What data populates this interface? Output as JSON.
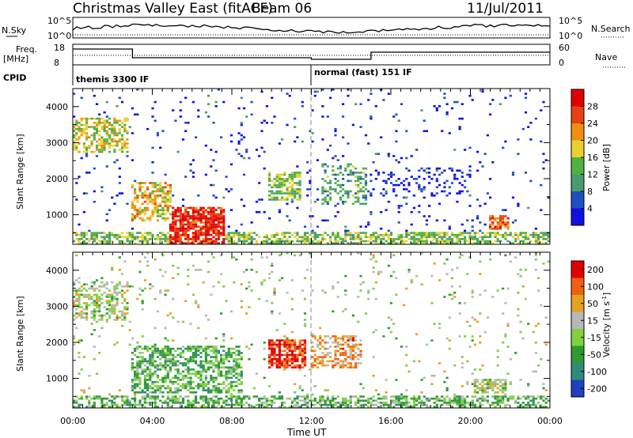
{
  "header": {
    "station": "Christmas Valley East (fitACF)",
    "beam": "Beam 06",
    "date": "11/Jul/2011"
  },
  "strip_labels": {
    "nsky": "N.Sky",
    "nsearch": "N.Search",
    "freq_line1": "Freq.",
    "freq_line2": "[MHz]",
    "nave": "Nave",
    "cpid": "CPID",
    "noise_ticks_left": [
      "10^5",
      "10^0"
    ],
    "noise_ticks_right": [
      "10^5",
      "10^0"
    ],
    "freq_ticks": [
      "18",
      "8"
    ],
    "nave_ticks": [
      "60",
      "0"
    ]
  },
  "cpid_segments": [
    {
      "label": "themis 3300 IF",
      "start_hour": 0
    },
    {
      "label": "normal (fast) 151 IF",
      "start_hour": 12
    }
  ],
  "axes": {
    "ylabel": "Slant Range [km]",
    "xlabel": "Time UT",
    "yticks": [
      "1000",
      "2000",
      "3000",
      "4000"
    ],
    "xticks": [
      "00:00",
      "04:00",
      "08:00",
      "12:00",
      "16:00",
      "20:00",
      "00:00"
    ]
  },
  "colorbars": {
    "power": {
      "label": "Power [dB]",
      "ticks": [
        "4",
        "8",
        "12",
        "16",
        "20",
        "24",
        "28"
      ],
      "colors": [
        "#1010e0",
        "#2050c0",
        "#4a9a70",
        "#50b040",
        "#e8d030",
        "#f09010",
        "#e84010",
        "#e00000"
      ]
    },
    "velocity": {
      "label": "Velocity [m s",
      "label_sup": "-1",
      "label_end": "]",
      "ticks": [
        "200",
        "100",
        "50",
        "15",
        "-15",
        "-50",
        "-100",
        "-200"
      ],
      "colors": [
        "#2040c0",
        "#2f8a7a",
        "#2f9a2f",
        "#80d040",
        "#b8b8b8",
        "#e8a020",
        "#f06010",
        "#e00000"
      ]
    }
  },
  "chart_data": {
    "type": "heatmap",
    "x_range_hours": [
      0,
      24
    ],
    "y_range_km": [
      180,
      4500
    ],
    "power_clusters": [
      {
        "t0": 0.0,
        "t1": 2.8,
        "r0": 2700,
        "r1": 3700,
        "density": 0.55,
        "level": 0.55
      },
      {
        "t0": 3.0,
        "t1": 5.0,
        "r0": 800,
        "r1": 1900,
        "density": 0.6,
        "level": 0.6
      },
      {
        "t0": 4.8,
        "t1": 7.6,
        "r0": 180,
        "r1": 1200,
        "density": 0.8,
        "level": 0.9
      },
      {
        "t0": 0.0,
        "t1": 24.0,
        "r0": 180,
        "r1": 500,
        "density": 0.6,
        "level": 0.45
      },
      {
        "t0": 9.8,
        "t1": 11.5,
        "r0": 1400,
        "r1": 2200,
        "density": 0.6,
        "level": 0.45
      },
      {
        "t0": 12.5,
        "t1": 14.8,
        "r0": 1300,
        "r1": 2400,
        "density": 0.35,
        "level": 0.35
      },
      {
        "t0": 15.0,
        "t1": 20.0,
        "r0": 1500,
        "r1": 2300,
        "density": 0.2,
        "level": 0.1
      },
      {
        "t0": 21.0,
        "t1": 22.0,
        "r0": 600,
        "r1": 1000,
        "density": 0.7,
        "level": 0.8
      },
      {
        "t0": 0.0,
        "t1": 24.0,
        "r0": 200,
        "r1": 4500,
        "density": 0.035,
        "level": 0.1
      }
    ],
    "velocity_clusters": [
      {
        "t0": 0.0,
        "t1": 2.8,
        "r0": 2600,
        "r1": 3700,
        "density": 0.5,
        "level": 0.5
      },
      {
        "t0": 3.0,
        "t1": 8.5,
        "r0": 600,
        "r1": 1900,
        "density": 0.55,
        "level": 0.35
      },
      {
        "t0": 9.8,
        "t1": 11.8,
        "r0": 1300,
        "r1": 2100,
        "density": 0.75,
        "level": 0.9
      },
      {
        "t0": 12.0,
        "t1": 14.6,
        "r0": 1300,
        "r1": 2200,
        "density": 0.5,
        "level": 0.72
      },
      {
        "t0": 0.0,
        "t1": 24.0,
        "r0": 180,
        "r1": 500,
        "density": 0.55,
        "level": 0.38
      },
      {
        "t0": 20.2,
        "t1": 21.8,
        "r0": 600,
        "r1": 1000,
        "density": 0.6,
        "level": 0.5
      },
      {
        "t0": 0.0,
        "t1": 24.0,
        "r0": 200,
        "r1": 4500,
        "density": 0.035,
        "level": 0.5
      }
    ]
  }
}
